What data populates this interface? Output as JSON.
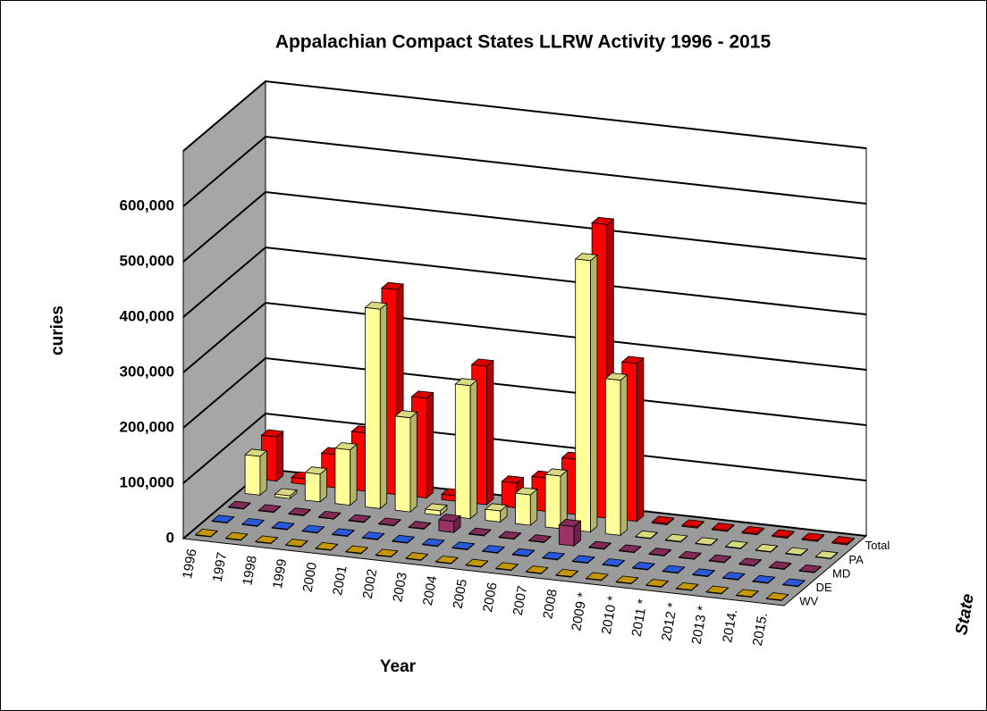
{
  "chart_data": {
    "type": "bar3d",
    "title": "Appalachian Compact States LLRW Activity 1996 - 2015",
    "y_label": "curies",
    "x_label": "Year",
    "z_label": "State",
    "categories": [
      "1996",
      "1997",
      "1998",
      "1999",
      "2000",
      "2001",
      "2002",
      "2003",
      "2004",
      "2005",
      "2006",
      "2007",
      "2008",
      "2009 *",
      "2010 *",
      "2011 *",
      "2012 *",
      "2013 *",
      "2014.",
      "2015."
    ],
    "series": [
      {
        "name": "WV",
        "color": "#e6b000",
        "values": [
          1000,
          1000,
          1000,
          1000,
          1000,
          1000,
          1000,
          1000,
          1000,
          1000,
          1000,
          1000,
          1000,
          1000,
          1000,
          1000,
          1000,
          1000,
          1000,
          1000
        ]
      },
      {
        "name": "DE",
        "color": "#3366ff",
        "values": [
          1000,
          1000,
          1000,
          1000,
          1000,
          1000,
          1000,
          1000,
          1000,
          1000,
          1000,
          1000,
          1000,
          1000,
          1000,
          1000,
          1000,
          1000,
          1000,
          1000
        ]
      },
      {
        "name": "MD",
        "color": "#993366",
        "values": [
          1000,
          1000,
          1000,
          1000,
          1000,
          1000,
          1000,
          20000,
          1000,
          1000,
          1000,
          35000,
          1000,
          1000,
          1000,
          1000,
          1000,
          1000,
          1000,
          1000
        ]
      },
      {
        "name": "PA",
        "color": "#ffff99",
        "values": [
          70000,
          5000,
          50000,
          100000,
          360000,
          170000,
          8000,
          240000,
          20000,
          55000,
          95000,
          490000,
          280000,
          1000,
          1000,
          1000,
          1000,
          1000,
          1000,
          1000
        ]
      },
      {
        "name": "Total",
        "color": "#ff0000",
        "values": [
          80000,
          10000,
          60000,
          105000,
          370000,
          180000,
          10000,
          250000,
          45000,
          60000,
          100000,
          530000,
          285000,
          2000,
          2000,
          2000,
          2000,
          2000,
          2000,
          2000
        ]
      }
    ],
    "ylim": [
      0,
      700000
    ],
    "yticks": [
      0,
      {
        "value": 100000,
        "label": "100,000"
      },
      {
        "value": 200000,
        "label": "200,000"
      },
      {
        "value": 300000,
        "label": "300,000"
      },
      {
        "value": 400000,
        "label": "400,000"
      },
      {
        "value": 500000,
        "label": "500,000"
      },
      {
        "value": 600000,
        "label": "600,000"
      }
    ],
    "grid": true
  }
}
